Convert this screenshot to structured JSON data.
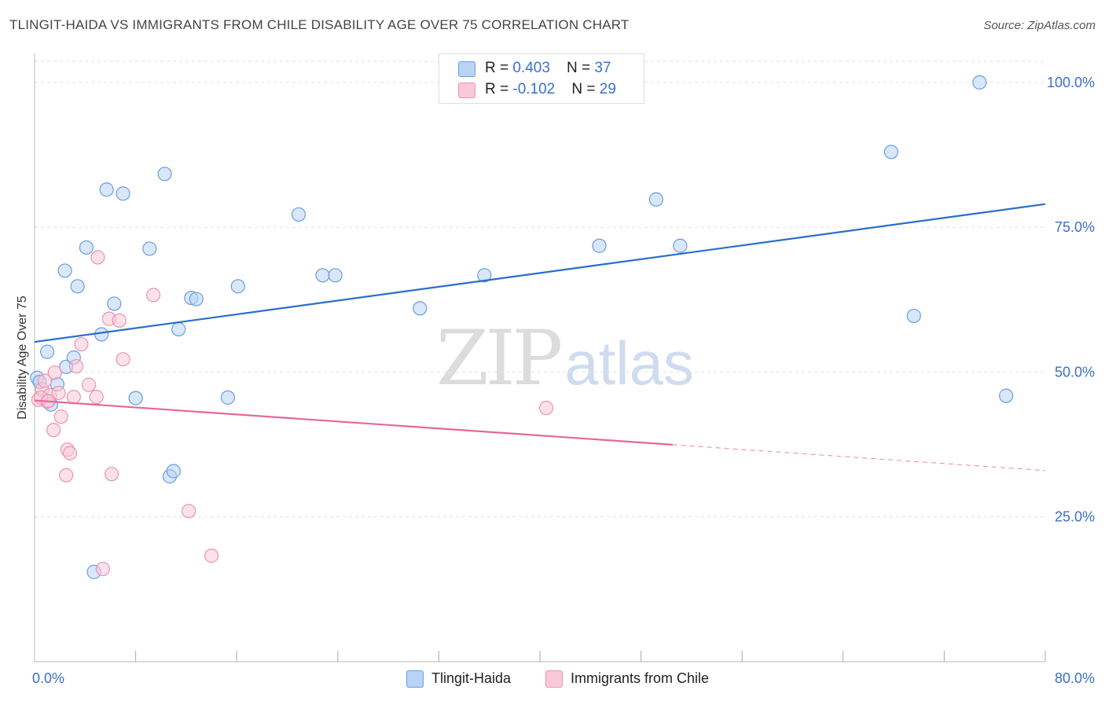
{
  "title": "TLINGIT-HAIDA VS IMMIGRANTS FROM CHILE DISABILITY AGE OVER 75 CORRELATION CHART",
  "source": "Source: ZipAtlas.com",
  "watermark": {
    "zip": "ZIP",
    "atlas": "atlas"
  },
  "colors": {
    "blue_fill": "#b8d3f4",
    "blue_stroke": "#6a9ee0",
    "blue_line": "#2a6dcc",
    "pink_fill": "#f9c9d8",
    "pink_stroke": "#ec93b2",
    "pink_line": "#e5679a",
    "axis_text_blue": "#3a6fd0",
    "grid": "#e2e2e2"
  },
  "legend": {
    "rows": [
      {
        "r_label": "R = ",
        "r_value": "0.403",
        "n_label": "N = ",
        "n_value": "37"
      },
      {
        "r_label": "R = ",
        "r_value": "-0.102",
        "n_label": "N = ",
        "n_value": "29"
      }
    ]
  },
  "bottom_legend": [
    "Tlingit-Haida",
    "Immigrants from Chile"
  ],
  "chart_data": {
    "type": "scatter",
    "title": "TLINGIT-HAIDA VS IMMIGRANTS FROM CHILE DISABILITY AGE OVER 75 CORRELATION CHART",
    "xlabel": "",
    "ylabel": "Disability Age Over 75",
    "xlim": [
      0,
      80
    ],
    "ylim": [
      0,
      105
    ],
    "x_tick_labels": [
      {
        "value": 0,
        "label": "0.0%"
      },
      {
        "value": 80,
        "label": "80.0%"
      }
    ],
    "x_minor_ticks": [
      8,
      16,
      24,
      32,
      40,
      48,
      56,
      64,
      72,
      80
    ],
    "y_tick_labels": [
      {
        "value": 25,
        "label": "25.0%"
      },
      {
        "value": 50,
        "label": "50.0%"
      },
      {
        "value": 75,
        "label": "75.0%"
      },
      {
        "value": 100,
        "label": "100.0%"
      }
    ],
    "grid": true,
    "legend_position": "top-center",
    "series": [
      {
        "name": "Tlingit-Haida",
        "color": "blue",
        "points": [
          [
            0.2,
            49.0
          ],
          [
            0.4,
            48.3
          ],
          [
            1.0,
            53.5
          ],
          [
            1.3,
            44.4
          ],
          [
            1.8,
            47.9
          ],
          [
            2.4,
            67.5
          ],
          [
            2.5,
            50.9
          ],
          [
            3.1,
            52.5
          ],
          [
            3.4,
            64.8
          ],
          [
            4.1,
            71.5
          ],
          [
            4.7,
            15.5
          ],
          [
            5.3,
            56.5
          ],
          [
            5.7,
            81.5
          ],
          [
            6.3,
            61.8
          ],
          [
            7.0,
            80.8
          ],
          [
            8.0,
            45.5
          ],
          [
            9.1,
            71.3
          ],
          [
            10.3,
            84.2
          ],
          [
            10.7,
            32.0
          ],
          [
            11.0,
            32.9
          ],
          [
            11.4,
            57.4
          ],
          [
            12.4,
            62.8
          ],
          [
            12.8,
            62.6
          ],
          [
            15.3,
            45.6
          ],
          [
            16.1,
            64.8
          ],
          [
            20.9,
            77.2
          ],
          [
            22.8,
            66.7
          ],
          [
            23.8,
            66.7
          ],
          [
            30.5,
            61.0
          ],
          [
            35.6,
            66.7
          ],
          [
            44.7,
            71.8
          ],
          [
            49.2,
            79.8
          ],
          [
            51.1,
            71.8
          ],
          [
            67.8,
            88.0
          ],
          [
            69.6,
            59.7
          ],
          [
            74.8,
            100.0
          ],
          [
            76.9,
            45.9
          ]
        ],
        "trend": {
          "x0": 0,
          "y0": 55.2,
          "x1": 80,
          "y1": 79.0,
          "dashed_from": null
        }
      },
      {
        "name": "Immigrants from Chile",
        "color": "pink",
        "points": [
          [
            0.3,
            45.2
          ],
          [
            0.6,
            47.0
          ],
          [
            0.8,
            48.5
          ],
          [
            1.0,
            44.9
          ],
          [
            1.2,
            46.0
          ],
          [
            1.5,
            40.0
          ],
          [
            1.6,
            49.9
          ],
          [
            1.9,
            46.4
          ],
          [
            2.1,
            42.3
          ],
          [
            2.5,
            32.2
          ],
          [
            2.6,
            36.6
          ],
          [
            2.8,
            36.0
          ],
          [
            3.1,
            45.7
          ],
          [
            3.3,
            51.0
          ],
          [
            3.7,
            54.8
          ],
          [
            4.3,
            47.8
          ],
          [
            4.9,
            45.7
          ],
          [
            5.0,
            69.8
          ],
          [
            5.4,
            16.0
          ],
          [
            5.9,
            59.2
          ],
          [
            6.1,
            32.4
          ],
          [
            6.7,
            58.9
          ],
          [
            7.0,
            52.2
          ],
          [
            9.4,
            63.3
          ],
          [
            12.2,
            26.0
          ],
          [
            14.0,
            18.3
          ],
          [
            40.5,
            43.8
          ],
          [
            0.5,
            45.6
          ],
          [
            1.1,
            45.0
          ]
        ],
        "trend": {
          "x0": 0,
          "y0": 45.1,
          "x1": 80,
          "y1": 33.0,
          "dashed_from": 50.5
        }
      }
    ]
  }
}
